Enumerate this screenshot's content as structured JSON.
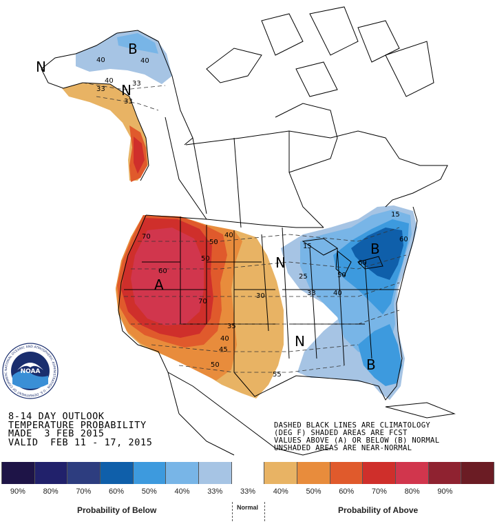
{
  "map": {
    "title": "",
    "zone_letters": [
      {
        "letter": "A",
        "meaning": "above",
        "region": "west"
      },
      {
        "letter": "B",
        "meaning": "below",
        "region": "alaska"
      },
      {
        "letter": "B",
        "meaning": "below",
        "region": "northeast"
      },
      {
        "letter": "B",
        "meaning": "below",
        "region": "southeast"
      },
      {
        "letter": "N",
        "meaning": "near-normal",
        "region": "alaska-west"
      },
      {
        "letter": "N",
        "meaning": "near-normal",
        "region": "alaska-interior"
      },
      {
        "letter": "N",
        "meaning": "near-normal",
        "region": "upper-midwest"
      },
      {
        "letter": "N",
        "meaning": "near-normal",
        "region": "south-central"
      }
    ],
    "contour_labels": [
      "40",
      "40",
      "33",
      "40",
      "33",
      "33",
      "70",
      "40",
      "50",
      "50",
      "70",
      "60",
      "30",
      "35",
      "40",
      "45",
      "50",
      "55",
      "15",
      "25",
      "33",
      "40",
      "50",
      "60",
      "60",
      "15"
    ]
  },
  "outlook": {
    "line1": "8-14 DAY OUTLOOK",
    "line2": "TEMPERATURE PROBABILITY",
    "line3": "MADE  3 FEB 2015",
    "line4": "VALID  FEB 11 - 17, 2015"
  },
  "notes": {
    "line1": "DASHED BLACK LINES ARE CLIMATOLOGY",
    "line2": "(DEG F) SHADED AREAS ARE FCST",
    "line3": "VALUES ABOVE (A) OR BELOW (B) NORMAL",
    "line4": "UNSHADED AREAS ARE NEAR-NORMAL"
  },
  "legend": {
    "swatches": [
      {
        "color": "#1e1447",
        "label": "90%"
      },
      {
        "color": "#21216b",
        "label": "80%"
      },
      {
        "color": "#2d3d7f",
        "label": "70%"
      },
      {
        "color": "#0f5faa",
        "label": "60%"
      },
      {
        "color": "#3d9ade",
        "label": "50%"
      },
      {
        "color": "#78b5e7",
        "label": "40%"
      },
      {
        "color": "#a6c4e4",
        "label": "33%"
      },
      {
        "color": "#ffffff",
        "label": "33%"
      },
      {
        "color": "#e8b364",
        "label": "40%"
      },
      {
        "color": "#e88c3c",
        "label": "50%"
      },
      {
        "color": "#e05a2c",
        "label": "60%"
      },
      {
        "color": "#cf2f2b",
        "label": "70%"
      },
      {
        "color": "#d1364d",
        "label": "80%"
      },
      {
        "color": "#8f2230",
        "label": "90%"
      },
      {
        "color": "#6b1c24",
        "label": ""
      }
    ],
    "probability_below": "Probability of Below",
    "normal": "Normal",
    "probability_above": "Probability of Above"
  },
  "logo": {
    "text": "NOAA",
    "ring_text": "NATIONAL OCEANIC AND ATMOSPHERIC ADMINISTRATION · U.S. DEPARTMENT OF COMMERCE"
  },
  "colors": {
    "land": "#ffffff",
    "border": "#000000",
    "climo_line": "#333333"
  }
}
